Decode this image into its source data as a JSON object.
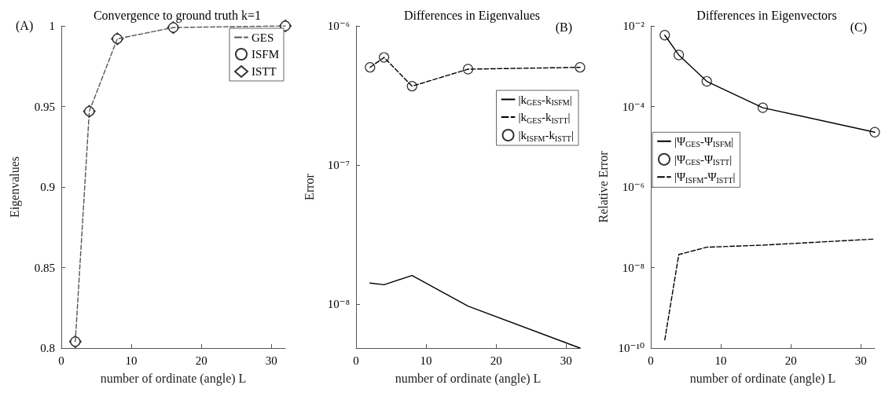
{
  "chart_data": [
    {
      "type": "line",
      "title": "Convergence to ground truth k=1",
      "xlabel": "number of ordinate (angle) L",
      "ylabel": "Eigenvalues",
      "annotations": [
        "(A)"
      ],
      "x": [
        2,
        4,
        8,
        16,
        32
      ],
      "xlim": [
        0,
        32
      ],
      "xticks": [
        0,
        10,
        20,
        30
      ],
      "ylim": [
        0.8,
        1
      ],
      "yticks": [
        0.8,
        0.85,
        0.9,
        0.95,
        1
      ],
      "grid": false,
      "legend": "top right",
      "series": [
        {
          "name": "GES",
          "type": "line",
          "color": "#555555",
          "line_style": "dashed",
          "marker": "none",
          "values": [
            0.804,
            0.947,
            0.992,
            0.999,
            1.0
          ]
        },
        {
          "name": "ISFM",
          "type": "scatter",
          "color": "#000000",
          "marker": "circle",
          "values": [
            0.804,
            0.947,
            0.992,
            0.999,
            1.0
          ]
        },
        {
          "name": "ISTT",
          "type": "scatter",
          "color": "#000000",
          "marker": "diamond",
          "values": [
            0.804,
            0.947,
            0.992,
            0.999,
            1.0
          ]
        }
      ]
    },
    {
      "type": "line",
      "title": "Differences in Eigenvalues",
      "xlabel": "number of ordinate (angle) L",
      "ylabel": "Error",
      "annotations": [
        "(B)"
      ],
      "log": "y",
      "x": [
        2,
        4,
        8,
        16,
        32
      ],
      "xlim": [
        0,
        32
      ],
      "xticks": [
        0,
        10,
        20,
        30
      ],
      "ylim": [
        4.84e-09,
        1e-06
      ],
      "yticks": [
        {
          "value": 1e-08,
          "label": "10⁻⁸"
        },
        {
          "value": 1e-07,
          "label": "10⁻⁷"
        },
        {
          "value": 1e-06,
          "label": "10⁻⁶"
        }
      ],
      "grid": false,
      "legend": "right",
      "series": [
        {
          "name": "|k$_{GES}$-k$_{ISFM}$|",
          "type": "line",
          "color": "#000000",
          "line_style": "solid",
          "marker": "none",
          "values": [
            1.42e-08,
            1.38e-08,
            1.61e-08,
            9.7e-09,
            4.84e-09
          ]
        },
        {
          "name": "|k$_{GES}$-k$_{ISTT}$|",
          "type": "line",
          "color": "#000000",
          "line_style": "dashed",
          "marker": "none",
          "values": [
            5.04e-07,
            5.94e-07,
            3.69e-07,
            4.89e-07,
            5.04e-07
          ]
        },
        {
          "name": "|k$_{ISFM}$-k$_{ISTT}$|",
          "type": "scatter",
          "color": "#000000",
          "marker": "circle",
          "values": [
            5.04e-07,
            5.94e-07,
            3.69e-07,
            4.89e-07,
            5.04e-07
          ]
        }
      ]
    },
    {
      "type": "line",
      "title": "Differences in Eigenvectors",
      "xlabel": "number of ordinate (angle) L",
      "ylabel": "Relative Error",
      "annotations": [
        "(C)"
      ],
      "log": "y",
      "x": [
        2,
        4,
        8,
        16,
        32
      ],
      "xlim": [
        0,
        32
      ],
      "xticks": [
        0,
        10,
        20,
        30
      ],
      "ylim": [
        1e-10,
        0.01
      ],
      "yticks": [
        {
          "value": 1e-10,
          "label": "10⁻¹⁰"
        },
        {
          "value": 1e-08,
          "label": "10⁻⁸"
        },
        {
          "value": 1e-06,
          "label": "10⁻⁶"
        },
        {
          "value": 0.0001,
          "label": "10⁻⁴"
        },
        {
          "value": 0.01,
          "label": "10⁻²"
        }
      ],
      "grid": false,
      "legend": "left",
      "series": [
        {
          "name": "|Ψ$_{GES}$-Ψ$_{ISFM}$|",
          "type": "line",
          "color": "#000000",
          "line_style": "solid",
          "marker": "none",
          "values": [
            0.0059,
            0.0019,
            0.00042,
            9.3e-05,
            2.3e-05
          ]
        },
        {
          "name": "|Ψ$_{GES}$-Ψ$_{ISTT}$|",
          "type": "scatter",
          "color": "#000000",
          "marker": "circle",
          "values": [
            0.0059,
            0.0019,
            0.00042,
            9.3e-05,
            2.3e-05
          ]
        },
        {
          "name": "|Ψ$_{ISFM}$-Ψ$_{ISTT}$|",
          "type": "line",
          "color": "#000000",
          "line_style": "dashed",
          "marker": "none",
          "values": [
            1.6e-10,
            2.1e-08,
            3.2e-08,
            3.6e-08,
            5.1e-08
          ]
        }
      ]
    }
  ]
}
